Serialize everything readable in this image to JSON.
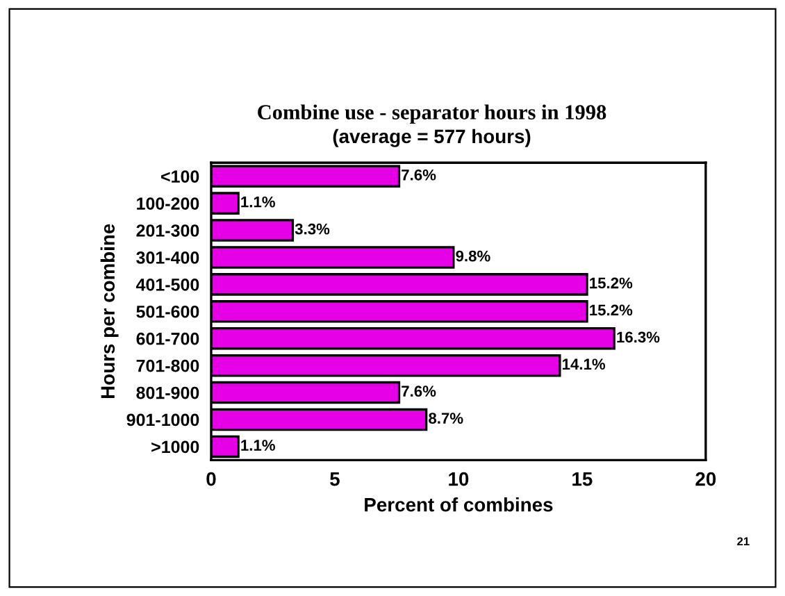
{
  "chart_data": {
    "type": "bar",
    "orientation": "horizontal",
    "title": "Combine use - separator hours in 1998",
    "subtitle": "(average = 577 hours)",
    "xlabel": "Percent of combines",
    "ylabel": "Hours per combine",
    "categories": [
      "<100",
      "100-200",
      "201-300",
      "301-400",
      "401-500",
      "501-600",
      "601-700",
      "701-800",
      "801-900",
      "901-1000",
      ">1000"
    ],
    "values": [
      7.6,
      1.1,
      3.3,
      9.8,
      15.2,
      15.2,
      16.3,
      14.1,
      7.6,
      8.7,
      1.1
    ],
    "value_labels": [
      "7.6%",
      "1.1%",
      "3.3%",
      "9.8%",
      "15.2%",
      "15.2%",
      "16.3%",
      "14.1%",
      "7.6%",
      "8.7%",
      "1.1%"
    ],
    "color": "#e600e6",
    "xlim": [
      0,
      20
    ],
    "xticks": [
      0,
      5,
      10,
      15,
      20
    ],
    "grid": false,
    "legend": false,
    "annotations": [
      "21"
    ]
  }
}
